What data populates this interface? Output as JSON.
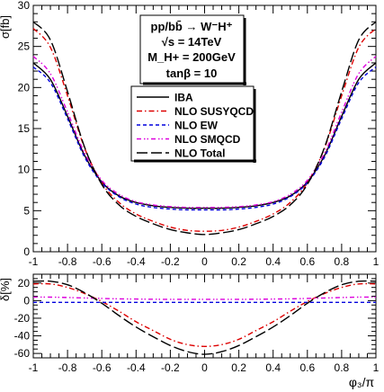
{
  "chart_data": [
    {
      "type": "line",
      "ylabel": "σ[fb]",
      "xlim": [
        -1,
        1
      ],
      "ylim": [
        0,
        30
      ],
      "x_ticks": [
        "-1",
        "-0.8",
        "-0.6",
        "-0.4",
        "-0.2",
        "0",
        "0.2",
        "0.4",
        "0.6",
        "0.8",
        "1"
      ],
      "y_ticks": [
        "0",
        "5",
        "10",
        "15",
        "20",
        "25",
        "30"
      ],
      "annotation": {
        "line1": "pp/bb̄ → W⁻H⁺",
        "line2": "√s = 14TeV",
        "line3": "M_H+ = 200GeV",
        "line4": "tanβ = 10"
      },
      "legend_position": "center",
      "x": [
        -1.0,
        -0.9,
        -0.8,
        -0.7,
        -0.6,
        -0.5,
        -0.4,
        -0.3,
        -0.2,
        -0.1,
        0.0,
        0.1,
        0.2,
        0.3,
        0.4,
        0.5,
        0.6,
        0.7,
        0.8,
        0.9,
        1.0
      ],
      "series": [
        {
          "name": "IBA",
          "color": "#000000",
          "dash": "solid",
          "values": [
            23.0,
            21.0,
            16.5,
            11.7,
            8.5,
            6.8,
            6.0,
            5.6,
            5.4,
            5.3,
            5.3,
            5.3,
            5.4,
            5.6,
            6.0,
            6.8,
            8.5,
            11.7,
            16.5,
            21.0,
            23.0
          ]
        },
        {
          "name": "NLO SUSYQCD",
          "color": "#dd0000",
          "dash": "dashdot",
          "values": [
            27.2,
            24.9,
            19.0,
            12.6,
            8.4,
            6.0,
            4.6,
            3.7,
            3.0,
            2.6,
            2.5,
            2.6,
            3.0,
            3.7,
            4.6,
            6.0,
            8.4,
            12.6,
            19.0,
            24.9,
            27.2
          ]
        },
        {
          "name": "NLO EW",
          "color": "#0000dd",
          "dash": "shortdash",
          "values": [
            22.5,
            20.6,
            16.2,
            11.5,
            8.4,
            6.7,
            5.8,
            5.4,
            5.2,
            5.1,
            5.1,
            5.1,
            5.2,
            5.4,
            5.8,
            6.7,
            8.4,
            11.5,
            16.2,
            20.6,
            22.5
          ]
        },
        {
          "name": "NLO SMQCD",
          "color": "#dd00dd",
          "dash": "dashdotdot",
          "values": [
            23.8,
            21.7,
            17.0,
            12.0,
            8.7,
            7.0,
            6.1,
            5.7,
            5.5,
            5.4,
            5.4,
            5.4,
            5.5,
            5.7,
            6.1,
            7.0,
            8.7,
            12.0,
            17.0,
            21.7,
            23.8
          ]
        },
        {
          "name": "NLO Total",
          "color": "#000000",
          "dash": "longdash",
          "values": [
            28.0,
            25.8,
            19.5,
            12.7,
            8.2,
            5.7,
            4.3,
            3.4,
            2.7,
            2.3,
            2.1,
            2.3,
            2.7,
            3.4,
            4.3,
            5.7,
            8.2,
            12.7,
            19.5,
            25.8,
            28.0
          ]
        }
      ]
    },
    {
      "type": "line",
      "xlabel": "φ₃/π",
      "ylabel": "δ[%]",
      "xlim": [
        -1,
        1
      ],
      "ylim": [
        -65,
        30
      ],
      "x_ticks": [
        "-1",
        "-0.8",
        "-0.6",
        "-0.4",
        "-0.2",
        "0",
        "0.2",
        "0.4",
        "0.6",
        "0.8",
        "1"
      ],
      "y_ticks": [
        "-60",
        "-40",
        "-20",
        "0",
        "20"
      ],
      "x": [
        -1.0,
        -0.9,
        -0.8,
        -0.7,
        -0.6,
        -0.5,
        -0.4,
        -0.3,
        -0.2,
        -0.1,
        0.0,
        0.1,
        0.2,
        0.3,
        0.4,
        0.5,
        0.6,
        0.7,
        0.8,
        0.9,
        1.0
      ],
      "series": [
        {
          "name": "NLO SUSYQCD",
          "color": "#dd0000",
          "dash": "dashdot",
          "values": [
            19,
            19,
            15,
            8,
            -1,
            -12,
            -24,
            -34,
            -44,
            -50,
            -52,
            -50,
            -44,
            -34,
            -24,
            -12,
            -1,
            8,
            15,
            19,
            19
          ]
        },
        {
          "name": "NLO EW",
          "color": "#0000dd",
          "dash": "shortdash",
          "values": [
            -2,
            -2,
            -2,
            -2,
            -2,
            -2,
            -2,
            -2,
            -2,
            -2,
            -2,
            -2,
            -2,
            -2,
            -2,
            -2,
            -2,
            -2,
            -2,
            -2,
            -2
          ]
        },
        {
          "name": "NLO SMQCD",
          "color": "#dd00dd",
          "dash": "dashdotdot",
          "values": [
            4,
            4,
            3.5,
            3,
            2.5,
            2,
            1.8,
            1.6,
            1.5,
            1.5,
            1.5,
            1.5,
            1.5,
            1.6,
            1.8,
            2,
            2.5,
            3,
            3.5,
            4,
            4
          ]
        },
        {
          "name": "NLO Total",
          "color": "#000000",
          "dash": "longdash",
          "values": [
            22,
            22,
            18,
            9,
            -3,
            -17,
            -30,
            -41,
            -51,
            -58,
            -61,
            -58,
            -51,
            -41,
            -30,
            -17,
            -3,
            9,
            18,
            22,
            22
          ]
        }
      ]
    }
  ]
}
